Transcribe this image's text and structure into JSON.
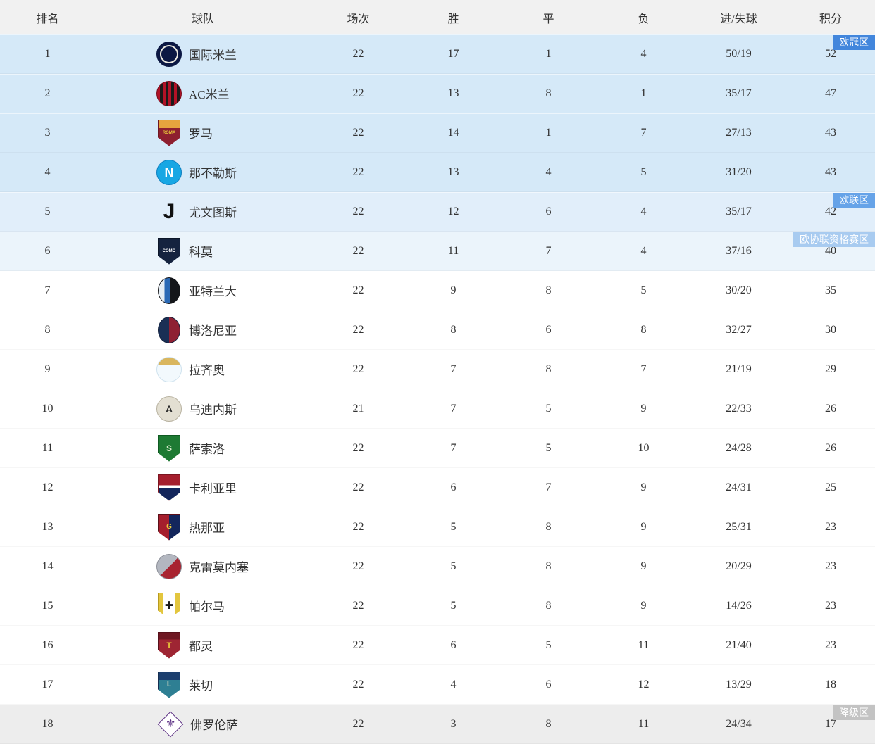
{
  "header": {
    "bg": "#f1f1f1",
    "columns": [
      "排名",
      "球队",
      "场次",
      "胜",
      "平",
      "负",
      "进/失球",
      "积分"
    ]
  },
  "zone_colors": {
    "champions_league": "#4286dc",
    "europa_league": "#66a3e8",
    "conference_qual": "#a8cbf0",
    "relegation": "#c3c3c3"
  },
  "row_colors": {
    "champions_league": "#d5e9f8",
    "europa_league": "#e1eefa",
    "conference_qual": "#ebf4fb",
    "normal": "#ffffff",
    "relegation": "#ededed"
  },
  "rows": [
    {
      "rank": "1",
      "team": "国际米兰",
      "played": "22",
      "win": "17",
      "draw": "1",
      "loss": "4",
      "goals": "50/19",
      "points": "52",
      "row_bg": "#d5e9f8",
      "badge": {
        "label": "欧冠区",
        "bg": "#4286dc"
      },
      "logo": {
        "shape": "circle",
        "bg": "#0c1843",
        "border": "#0c1843",
        "ring": "#ece9df",
        "text": "",
        "text_color": "#ffffff",
        "text_size": 9
      }
    },
    {
      "rank": "2",
      "team": "AC米兰",
      "played": "22",
      "win": "13",
      "draw": "8",
      "loss": "1",
      "goals": "35/17",
      "points": "47",
      "row_bg": "#d5e9f8",
      "logo": {
        "shape": "circle",
        "bg": "repeating-linear-gradient(90deg,#b11226 0 4px,#1a1a1a 4px 8px)",
        "border": "#7a0c1c",
        "text": "",
        "text_color": "#ffffff",
        "text_size": 9
      }
    },
    {
      "rank": "3",
      "team": "罗马",
      "played": "22",
      "win": "14",
      "draw": "1",
      "loss": "7",
      "goals": "27/13",
      "points": "43",
      "row_bg": "#d5e9f8",
      "logo": {
        "shape": "shield",
        "bg": "linear-gradient(180deg,#e6a43e 0 30%,#8e1f2f 30%)",
        "border": "#6e1722",
        "text": "ROMA",
        "text_color": "#e8c83a",
        "text_size": 6
      }
    },
    {
      "rank": "4",
      "team": "那不勒斯",
      "played": "22",
      "win": "13",
      "draw": "4",
      "loss": "5",
      "goals": "31/20",
      "points": "43",
      "row_bg": "#d5e9f8",
      "logo": {
        "shape": "circle",
        "bg": "#17a7e4",
        "border": "#0d7fc0",
        "text": "N",
        "text_color": "#ffffff",
        "text_size": 18
      }
    },
    {
      "rank": "5",
      "team": "尤文图斯",
      "played": "22",
      "win": "12",
      "draw": "6",
      "loss": "4",
      "goals": "35/17",
      "points": "42",
      "row_bg": "#e1eefa",
      "badge": {
        "label": "欧联区",
        "bg": "#66a3e8"
      },
      "logo": {
        "shape": "plain",
        "bg": "transparent",
        "border": "transparent",
        "text": "J",
        "text_color": "#101010",
        "text_size": 30
      }
    },
    {
      "rank": "6",
      "team": "科莫",
      "played": "22",
      "win": "11",
      "draw": "7",
      "loss": "4",
      "goals": "37/16",
      "points": "40",
      "row_bg": "#ebf4fb",
      "badge": {
        "label": "欧协联资格赛区",
        "bg": "#a8cbf0"
      },
      "logo": {
        "shape": "shield",
        "bg": "#15233f",
        "border": "#0c1628",
        "text": "COMO",
        "text_color": "#ffffff",
        "text_size": 6
      }
    },
    {
      "rank": "7",
      "team": "亚特兰大",
      "played": "22",
      "win": "9",
      "draw": "8",
      "loss": "5",
      "goals": "30/20",
      "points": "35",
      "row_bg": "#ffffff",
      "logo": {
        "shape": "oval",
        "bg": "linear-gradient(90deg,#e5edf4 0 28%,#2a69b5 28% 55%,#14161a 55%)",
        "border": "#14161a",
        "text": "",
        "text_color": "#ffffff",
        "text_size": 9
      }
    },
    {
      "rank": "8",
      "team": "博洛尼亚",
      "played": "22",
      "win": "8",
      "draw": "6",
      "loss": "8",
      "goals": "32/27",
      "points": "30",
      "row_bg": "#ffffff",
      "logo": {
        "shape": "oval",
        "bg": "linear-gradient(90deg,#1a2f55 50%,#8e2033 50%)",
        "border": "#14223d",
        "text": "",
        "text_color": "#ffffff",
        "text_size": 9
      }
    },
    {
      "rank": "9",
      "team": "拉齐奥",
      "played": "22",
      "win": "7",
      "draw": "8",
      "loss": "7",
      "goals": "21/19",
      "points": "29",
      "row_bg": "#ffffff",
      "logo": {
        "shape": "circle",
        "bg": "linear-gradient(180deg,#d9b65e 0 32%,#f2f9fd 32%)",
        "border": "#cfe2ee",
        "text": "",
        "text_color": "#9ec9e4",
        "text_size": 9
      }
    },
    {
      "rank": "10",
      "team": "乌迪内斯",
      "played": "21",
      "win": "7",
      "draw": "5",
      "loss": "9",
      "goals": "22/33",
      "points": "26",
      "row_bg": "#ffffff",
      "logo": {
        "shape": "circle",
        "bg": "#e3dfd2",
        "border": "#b8b2a0",
        "text": "A",
        "text_color": "#2b2b2b",
        "text_size": 14
      }
    },
    {
      "rank": "11",
      "team": "萨索洛",
      "played": "22",
      "win": "7",
      "draw": "5",
      "loss": "10",
      "goals": "24/28",
      "points": "26",
      "row_bg": "#ffffff",
      "logo": {
        "shape": "shield",
        "bg": "#1e7a33",
        "border": "#0f5a22",
        "text": "S",
        "text_color": "#d8e9c9",
        "text_size": 12
      }
    },
    {
      "rank": "12",
      "team": "卡利亚里",
      "played": "22",
      "win": "6",
      "draw": "7",
      "loss": "9",
      "goals": "24/31",
      "points": "25",
      "row_bg": "#ffffff",
      "logo": {
        "shape": "shield",
        "bg": "linear-gradient(180deg,#a51e2d 0 40%,#ffffff 40% 52%,#13265c 52%)",
        "border": "#7a1520",
        "text": "",
        "text_color": "#ffffff",
        "text_size": 9
      }
    },
    {
      "rank": "13",
      "team": "热那亚",
      "played": "22",
      "win": "5",
      "draw": "8",
      "loss": "9",
      "goals": "25/31",
      "points": "23",
      "row_bg": "#ffffff",
      "logo": {
        "shape": "shield",
        "bg": "linear-gradient(90deg,#a51e2d 50%,#13265c 50%)",
        "border": "#5c1019",
        "text": "G",
        "text_color": "#e8c83a",
        "text_size": 10
      }
    },
    {
      "rank": "14",
      "team": "克雷莫内塞",
      "played": "22",
      "win": "5",
      "draw": "8",
      "loss": "9",
      "goals": "20/29",
      "points": "23",
      "row_bg": "#ffffff",
      "logo": {
        "shape": "circle",
        "bg": "linear-gradient(135deg,#b3b7c0 50%,#a82330 50%)",
        "border": "#8d9099",
        "text": "",
        "text_color": "#ffffff",
        "text_size": 9
      }
    },
    {
      "rank": "15",
      "team": "帕尔马",
      "played": "22",
      "win": "5",
      "draw": "8",
      "loss": "9",
      "goals": "14/26",
      "points": "23",
      "row_bg": "#ffffff",
      "logo": {
        "shape": "shield",
        "bg": "linear-gradient(90deg,#e3c63e 0 22%,#ffffff 22% 78%,#e3c63e 78%)",
        "border": "#b89a1e",
        "text": "✚",
        "text_color": "#1a1a1a",
        "text_size": 15
      }
    },
    {
      "rank": "16",
      "team": "都灵",
      "played": "22",
      "win": "6",
      "draw": "5",
      "loss": "11",
      "goals": "21/40",
      "points": "23",
      "row_bg": "#ffffff",
      "logo": {
        "shape": "shield",
        "bg": "linear-gradient(180deg,#6e1722 0 26%,#9e2533 26%)",
        "border": "#56101a",
        "text": "T",
        "text_color": "#e8c83a",
        "text_size": 12
      }
    },
    {
      "rank": "17",
      "team": "莱切",
      "played": "22",
      "win": "4",
      "draw": "6",
      "loss": "12",
      "goals": "13/29",
      "points": "18",
      "row_bg": "#ffffff",
      "logo": {
        "shape": "shield",
        "bg": "linear-gradient(180deg,#1c3f6e 0 30%,#2e7f93 30%)",
        "border": "#152e51",
        "text": "L",
        "text_color": "#f2e9c8",
        "text_size": 10
      }
    },
    {
      "rank": "18",
      "team": "佛罗伦萨",
      "played": "22",
      "win": "3",
      "draw": "8",
      "loss": "11",
      "goals": "24/34",
      "points": "17",
      "row_bg": "#ededed",
      "badge": {
        "label": "降级区",
        "bg": "#c3c3c3"
      },
      "logo": {
        "shape": "diamond",
        "bg": "#ffffff",
        "border": "#5a2d82",
        "text": "⚜",
        "text_color": "#5a2d82",
        "text_size": 16
      }
    }
  ]
}
